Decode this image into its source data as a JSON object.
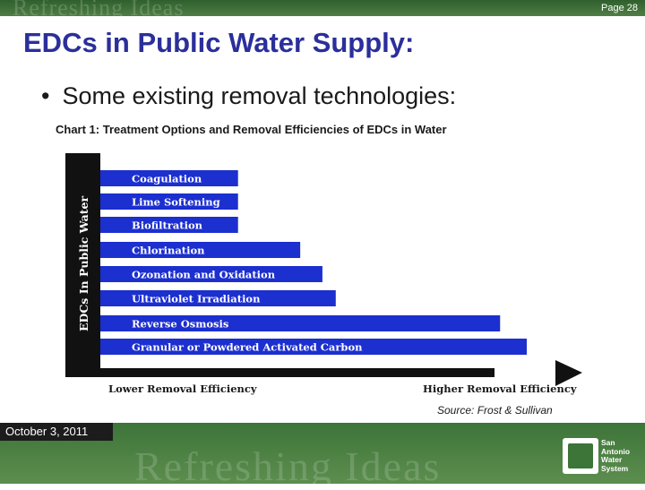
{
  "header": {
    "banner_text": "Refreshing Ideas",
    "page_number": "Page 28"
  },
  "title": "EDCs in Public Water Supply:",
  "bullet": "Some existing removal technologies:",
  "chart_data": {
    "type": "bar",
    "orientation": "horizontal",
    "title": "Chart 1: Treatment Options and Removal Efficiencies of EDCs in Water",
    "ylabel": "EDCs In Public Water",
    "xlabel_low": "Lower Removal Efficiency",
    "xlabel_high": "Higher Removal Efficiency",
    "categories": [
      "Coagulation",
      "Lime Softening",
      "Biofiltration",
      "Chlorination",
      "Ozonation and Oxidation",
      "Ultraviolet Irradiation",
      "Reverse Osmosis",
      "Granular or Powdered Activated Carbon"
    ],
    "values": [
      31,
      31,
      31,
      45,
      50,
      53,
      90,
      96
    ],
    "xlim": [
      0,
      100
    ],
    "grid": false,
    "bar_color": "#1c2fcf",
    "source": "Source: Frost & Sullivan"
  },
  "footer": {
    "date": "October 3, 2011",
    "banner_text": "Refreshing Ideas",
    "logo_lines": [
      "San",
      "Antonio",
      "Water",
      "System"
    ]
  }
}
